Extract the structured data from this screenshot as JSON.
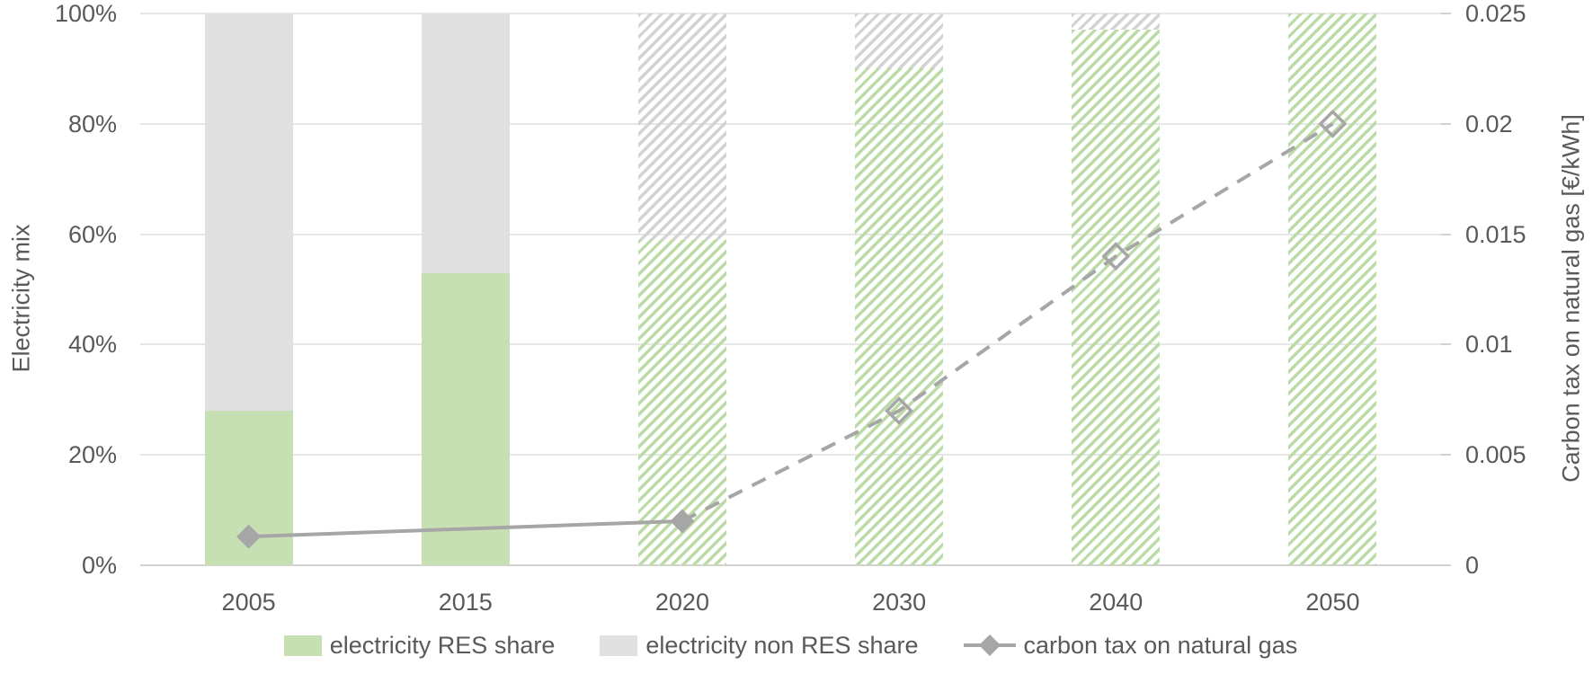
{
  "colors": {
    "res_green": "#c6e0b4",
    "res_green_hatch": "#bcdca7",
    "nonres_gray": "#e0e0e0",
    "nonres_gray_hatch": "#d3d3d3",
    "line_gray": "#a6a6a6",
    "text_gray": "#595959",
    "gridline": "#e7e7e7",
    "axis_line": "#d2d2d2"
  },
  "chart_data": {
    "type": "combo-stacked-bar-line",
    "categories": [
      "2005",
      "2015",
      "2020",
      "2030",
      "2040",
      "2050"
    ],
    "left_axis": {
      "title": "Electricity mix",
      "min": 0,
      "max": 100,
      "ticks": [
        "0%",
        "20%",
        "40%",
        "60%",
        "80%",
        "100%"
      ]
    },
    "right_axis": {
      "title": "Carbon tax on natural gas [€/kWh]",
      "min": 0,
      "max": 0.025,
      "ticks": [
        "0",
        "0.005",
        "0.01",
        "0.015",
        "0.02",
        "0.025"
      ]
    },
    "grid": "horizontal-only",
    "bar_series": [
      {
        "name": "electricity RES share",
        "values": [
          28,
          53,
          59,
          90,
          97,
          100
        ]
      },
      {
        "name": "electricity non RES share",
        "values": [
          72,
          47,
          41,
          10,
          3,
          0
        ]
      }
    ],
    "bar_fill_styles": [
      "solid",
      "solid",
      "hatched",
      "hatched",
      "hatched",
      "hatched"
    ],
    "line_series": {
      "name": "carbon tax on natural gas",
      "points": [
        {
          "category": "2005",
          "value": 0.0013,
          "marker": "filled"
        },
        {
          "category": "2020",
          "value": 0.002,
          "marker": "filled"
        },
        {
          "category": "2030",
          "value": 0.007,
          "marker": "open"
        },
        {
          "category": "2040",
          "value": 0.014,
          "marker": "open"
        },
        {
          "category": "2050",
          "value": 0.02,
          "marker": "open"
        }
      ],
      "segments": [
        {
          "from": "2005",
          "to": "2020",
          "style": "solid"
        },
        {
          "from": "2020",
          "to": "2050",
          "style": "dashed"
        }
      ]
    },
    "legend": [
      {
        "label": "electricity RES share",
        "swatch": "green-rect"
      },
      {
        "label": "electricity non RES share",
        "swatch": "gray-rect"
      },
      {
        "label": "carbon tax on natural gas",
        "swatch": "line-diamond"
      }
    ]
  }
}
